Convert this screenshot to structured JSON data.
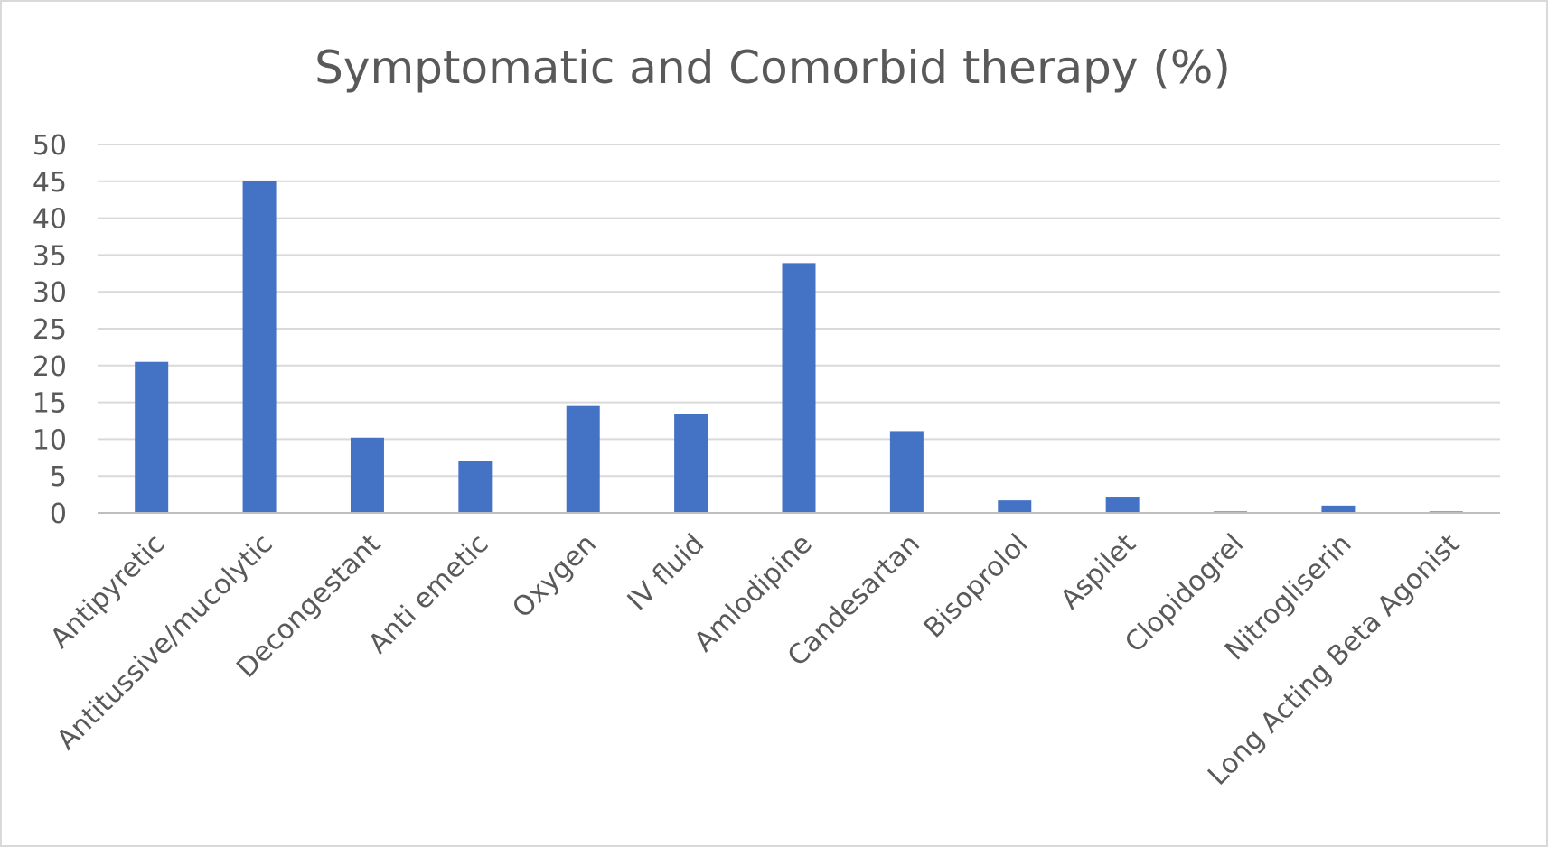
{
  "chart_data": {
    "type": "bar",
    "title": "Symptomatic and Comorbid therapy (%)",
    "xlabel": "",
    "ylabel": "",
    "categories": [
      "Antipyretic",
      "Antitussive/mucolytic",
      "Decongestant",
      "Anti emetic",
      "Oxygen",
      "IV fluid",
      "Amlodipine",
      "Candesartan",
      "Bisoprolol",
      "Aspilet",
      "Clopidogrel",
      "Nitrogliserin",
      "Long Acting Beta Agonist"
    ],
    "values": [
      20.5,
      45.0,
      10.2,
      7.1,
      14.5,
      13.4,
      33.9,
      11.1,
      1.7,
      2.2,
      0.2,
      1.0,
      0.2
    ],
    "yticks": [
      "0",
      "5",
      "10",
      "15",
      "20",
      "25",
      "30",
      "35",
      "40",
      "45",
      "50"
    ],
    "ylim": [
      0,
      50
    ],
    "grid": true,
    "legend": "none",
    "bar_color": "#4472c4"
  }
}
